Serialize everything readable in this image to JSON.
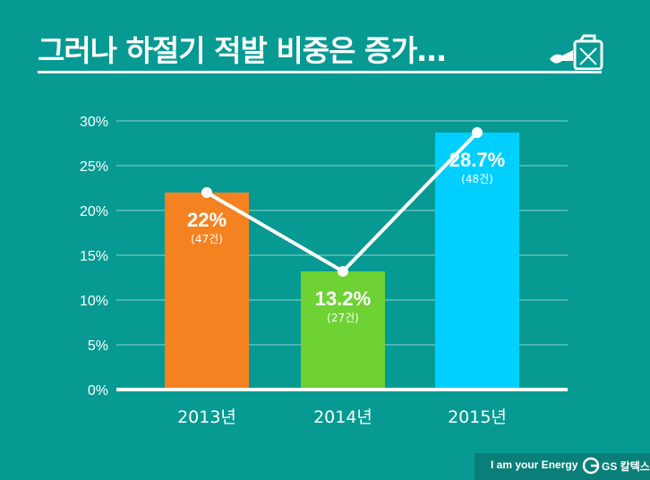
{
  "title": "그러나 하절기 적발 비중은 증가…",
  "footer": {
    "slogan": "I am your Energy",
    "brand": "GS 칼텍스"
  },
  "icons": {
    "title_icon": "fuel-can-icon",
    "brand_logo": "gs-logo-icon"
  },
  "colors": {
    "background": "#069a92",
    "bar_2013": "#f58220",
    "bar_2014": "#6ed134",
    "bar_2015": "#00cfff",
    "line": "#ffffff"
  },
  "chart_data": {
    "type": "bar",
    "categories": [
      "2013년",
      "2014년",
      "2015년"
    ],
    "values": [
      22,
      13.2,
      28.7
    ],
    "value_labels": [
      "22%",
      "13.2%",
      "28.7%"
    ],
    "count_labels": [
      "(47건)",
      "(27건)",
      "(48건)"
    ],
    "line_values": [
      22,
      13.2,
      28.7
    ],
    "yticks": [
      "0%",
      "5%",
      "10%",
      "15%",
      "20%",
      "25%",
      "30%"
    ],
    "ylim": [
      0,
      30
    ],
    "grid": true,
    "legend": "none"
  }
}
